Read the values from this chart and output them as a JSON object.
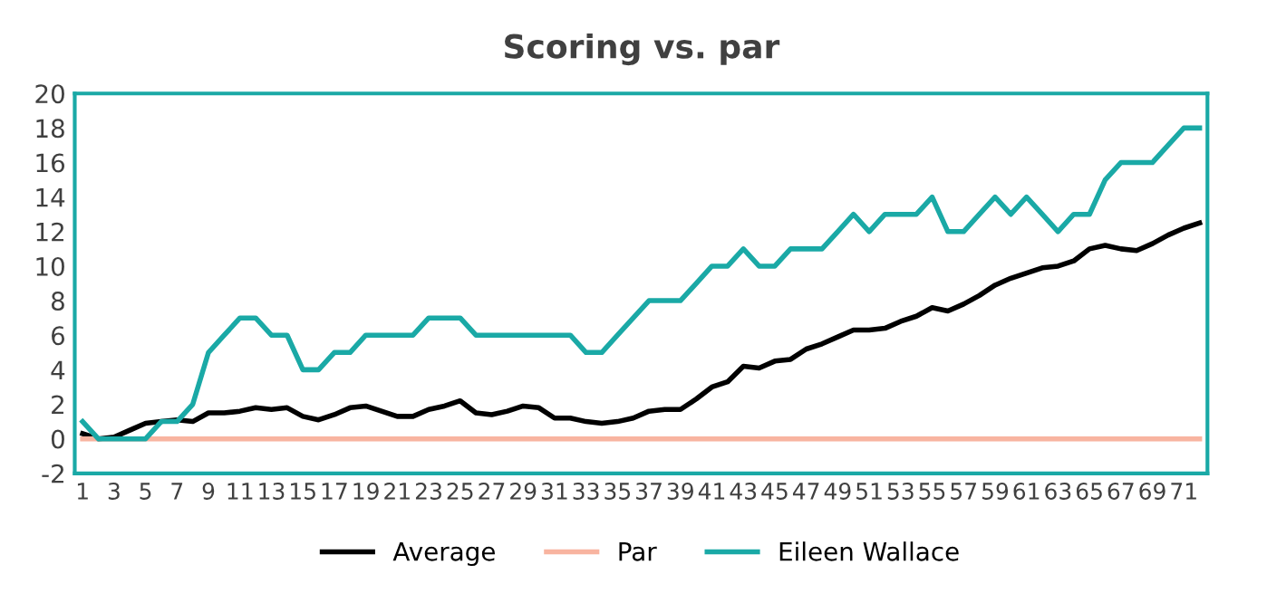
{
  "chart_data": {
    "type": "line",
    "title": "Scoring vs. par",
    "categories": [
      "1",
      null,
      "3",
      null,
      "5",
      null,
      "7",
      null,
      "9",
      null,
      "11",
      null,
      "13",
      null,
      "15",
      null,
      "17",
      null,
      "19",
      null,
      "21",
      null,
      "23",
      null,
      "25",
      null,
      "27",
      null,
      "29",
      null,
      "31",
      null,
      "33",
      null,
      "35",
      null,
      "37",
      null,
      "39",
      null,
      "41",
      null,
      "43",
      null,
      "45",
      null,
      "47",
      null,
      "49",
      null,
      "51",
      null,
      "53",
      null,
      "55",
      null,
      "57",
      null,
      "59",
      null,
      "61",
      null,
      "63",
      null,
      "65",
      null,
      "67",
      null,
      "69",
      null,
      "71",
      null
    ],
    "series": [
      {
        "name": "Average",
        "color": "#000000",
        "values": [
          0.3,
          0,
          0.1,
          0.5,
          0.9,
          1.0,
          1.1,
          1.0,
          1.5,
          1.5,
          1.6,
          1.8,
          1.7,
          1.8,
          1.3,
          1.1,
          1.4,
          1.8,
          1.9,
          1.6,
          1.3,
          1.3,
          1.7,
          1.9,
          2.2,
          1.5,
          1.4,
          1.6,
          1.9,
          1.8,
          1.2,
          1.2,
          1.0,
          0.9,
          1.0,
          1.2,
          1.6,
          1.7,
          1.7,
          2.3,
          3.0,
          3.3,
          4.2,
          4.1,
          4.5,
          4.6,
          5.2,
          5.5,
          5.9,
          6.3,
          6.3,
          6.4,
          6.8,
          7.1,
          7.6,
          7.4,
          7.8,
          8.3,
          8.9,
          9.3,
          9.6,
          9.9,
          10.0,
          10.3,
          11.0,
          11.2,
          11.0,
          10.9,
          11.3,
          11.8,
          12.2,
          12.5
        ]
      },
      {
        "name": "Par",
        "color": "#f8b4a0",
        "values": [
          0,
          0,
          0,
          0,
          0,
          0,
          0,
          0,
          0,
          0,
          0,
          0,
          0,
          0,
          0,
          0,
          0,
          0,
          0,
          0,
          0,
          0,
          0,
          0,
          0,
          0,
          0,
          0,
          0,
          0,
          0,
          0,
          0,
          0,
          0,
          0,
          0,
          0,
          0,
          0,
          0,
          0,
          0,
          0,
          0,
          0,
          0,
          0,
          0,
          0,
          0,
          0,
          0,
          0,
          0,
          0,
          0,
          0,
          0,
          0,
          0,
          0,
          0,
          0,
          0,
          0,
          0,
          0,
          0,
          0,
          0,
          0
        ]
      },
      {
        "name": "Eileen Wallace",
        "color": "#1aa9a6",
        "values": [
          1,
          0,
          0,
          0,
          0,
          1,
          1,
          2,
          5,
          6,
          7,
          7,
          6,
          6,
          4,
          4,
          5,
          5,
          6,
          6,
          6,
          6,
          7,
          7,
          7,
          6,
          6,
          6,
          6,
          6,
          6,
          6,
          5,
          5,
          6,
          7,
          8,
          8,
          8,
          9,
          10,
          10,
          11,
          10,
          10,
          11,
          11,
          11,
          12,
          13,
          12,
          13,
          13,
          13,
          14,
          12,
          12,
          13,
          14,
          13,
          14,
          13,
          12,
          13,
          13,
          15,
          16,
          16,
          16,
          17,
          18,
          18
        ]
      }
    ],
    "ylim": [
      -2,
      20
    ],
    "yticks": [
      -2,
      0,
      2,
      4,
      6,
      8,
      10,
      12,
      14,
      16,
      18,
      20
    ],
    "grid": false,
    "legend": "bottom",
    "marker": "none",
    "line_style": "solid"
  }
}
